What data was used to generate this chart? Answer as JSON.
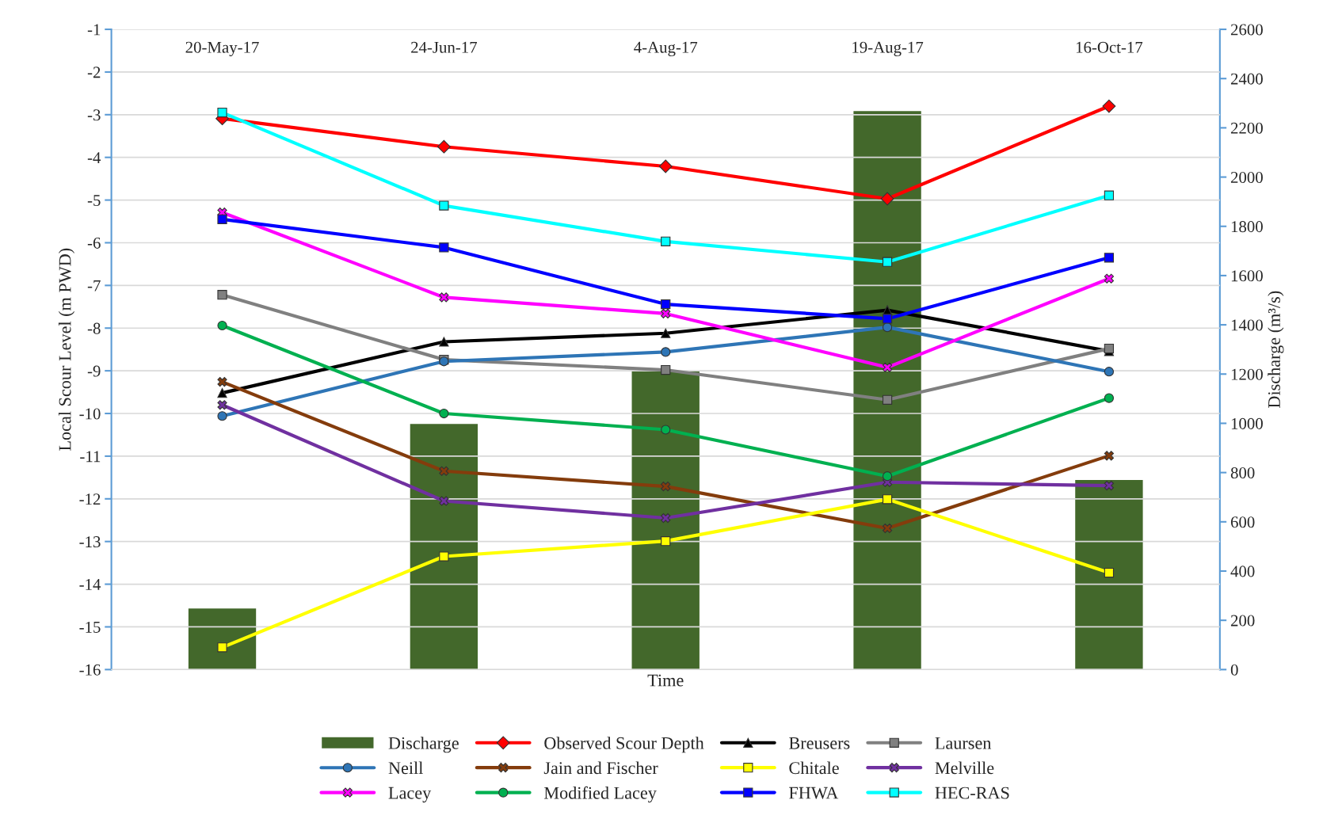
{
  "chart_data": {
    "type": "line",
    "xlabel": "Time",
    "ylabel": "Local Scour Level (m PWD)",
    "y2label": "Discharge (m³/s)",
    "categories": [
      "20-May-17",
      "24-Jun-17",
      "4-Aug-17",
      "19-Aug-17",
      "16-Oct-17"
    ],
    "ylim": [
      -16,
      -1
    ],
    "yticks": [
      -16,
      -15,
      -14,
      -13,
      -12,
      -11,
      -10,
      -9,
      -8,
      -7,
      -6,
      -5,
      -4,
      -3,
      -2,
      -1
    ],
    "y2lim": [
      0,
      2600
    ],
    "y2ticks": [
      0,
      200,
      400,
      600,
      800,
      1000,
      1200,
      1400,
      1600,
      1800,
      2000,
      2200,
      2400,
      2600
    ],
    "grid": "y",
    "legend": "bottom",
    "series": [
      {
        "name": "Discharge",
        "type": "bar",
        "axis": "y2",
        "color": "#43682b",
        "values": [
          250,
          1000,
          1215,
          2270,
          772
        ]
      },
      {
        "name": "Observed Scour Depth",
        "color": "#ff0000",
        "marker": "diamond",
        "values": [
          -3.09,
          -3.75,
          -4.21,
          -4.97,
          -2.8
        ]
      },
      {
        "name": "Breusers",
        "color": "#000000",
        "marker": "triangle",
        "values": [
          -9.52,
          -8.32,
          -8.12,
          -7.58,
          -8.54
        ]
      },
      {
        "name": "Laursen",
        "color": "#808080",
        "marker": "square",
        "values": [
          -7.22,
          -8.74,
          -8.98,
          -9.68,
          -8.48
        ]
      },
      {
        "name": "Neill",
        "color": "#2e75b6",
        "marker": "circle",
        "values": [
          -10.06,
          -8.78,
          -8.56,
          -7.98,
          -9.02
        ]
      },
      {
        "name": "Jain and Fischer",
        "color": "#843c0c",
        "marker": "cross",
        "values": [
          -9.26,
          -11.35,
          -11.71,
          -12.69,
          -10.99
        ]
      },
      {
        "name": "Chitale",
        "color": "#ffff00",
        "marker": "square",
        "values": [
          -15.48,
          -13.35,
          -12.99,
          -12.01,
          -13.73
        ]
      },
      {
        "name": "Melville",
        "color": "#7030a0",
        "marker": "cross",
        "values": [
          -9.8,
          -12.05,
          -12.45,
          -11.61,
          -11.69
        ]
      },
      {
        "name": "Lacey",
        "color": "#ff00ff",
        "marker": "cross",
        "values": [
          -5.29,
          -7.28,
          -7.66,
          -8.92,
          -6.84
        ]
      },
      {
        "name": "Modified Lacey",
        "color": "#00b050",
        "marker": "circle",
        "values": [
          -7.94,
          -10.0,
          -10.38,
          -11.47,
          -9.64
        ]
      },
      {
        "name": "FHWA",
        "color": "#0000ff",
        "marker": "square",
        "values": [
          -5.45,
          -6.11,
          -7.44,
          -7.78,
          -6.35
        ]
      },
      {
        "name": "HEC-RAS",
        "color": "#00ffff",
        "marker": "square",
        "values": [
          -2.95,
          -5.13,
          -5.97,
          -6.45,
          -4.89
        ]
      }
    ]
  }
}
